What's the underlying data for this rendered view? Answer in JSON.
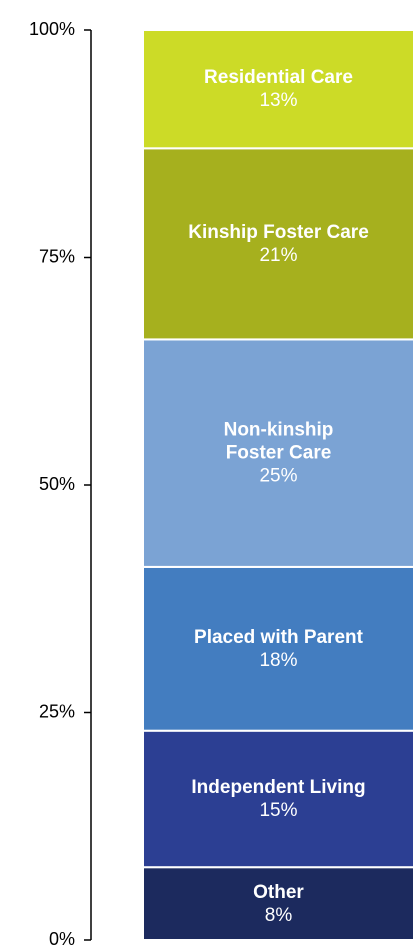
{
  "chart_data": {
    "type": "stacked_bar",
    "ylim": [
      0,
      100
    ],
    "yticks": [
      {
        "value": 0,
        "label": "0%"
      },
      {
        "value": 25,
        "label": "25%"
      },
      {
        "value": 50,
        "label": "50%"
      },
      {
        "value": 75,
        "label": "75%"
      },
      {
        "value": 100,
        "label": "100%"
      }
    ],
    "series": [
      {
        "name": "Other",
        "color": "#1c2a5e",
        "values": [
          8
        ],
        "value_labels": [
          "8%"
        ]
      },
      {
        "name": "Independent Living",
        "color": "#2c3f93",
        "values": [
          15
        ],
        "value_labels": [
          "15%"
        ]
      },
      {
        "name": "Placed with Parent",
        "color": "#437dc0",
        "values": [
          18
        ],
        "value_labels": [
          "18%"
        ]
      },
      {
        "name": "Non-kinship\nFoster Care",
        "color": "#7ba3d4",
        "values": [
          25
        ],
        "value_labels": [
          "25%"
        ]
      },
      {
        "name": "Kinship Foster Care",
        "color": "#a6b01e",
        "values": [
          21
        ],
        "value_labels": [
          "21%"
        ]
      },
      {
        "name": "Residential Care",
        "color": "#ccdb27",
        "values": [
          13
        ],
        "value_labels": [
          "13%"
        ]
      }
    ]
  }
}
